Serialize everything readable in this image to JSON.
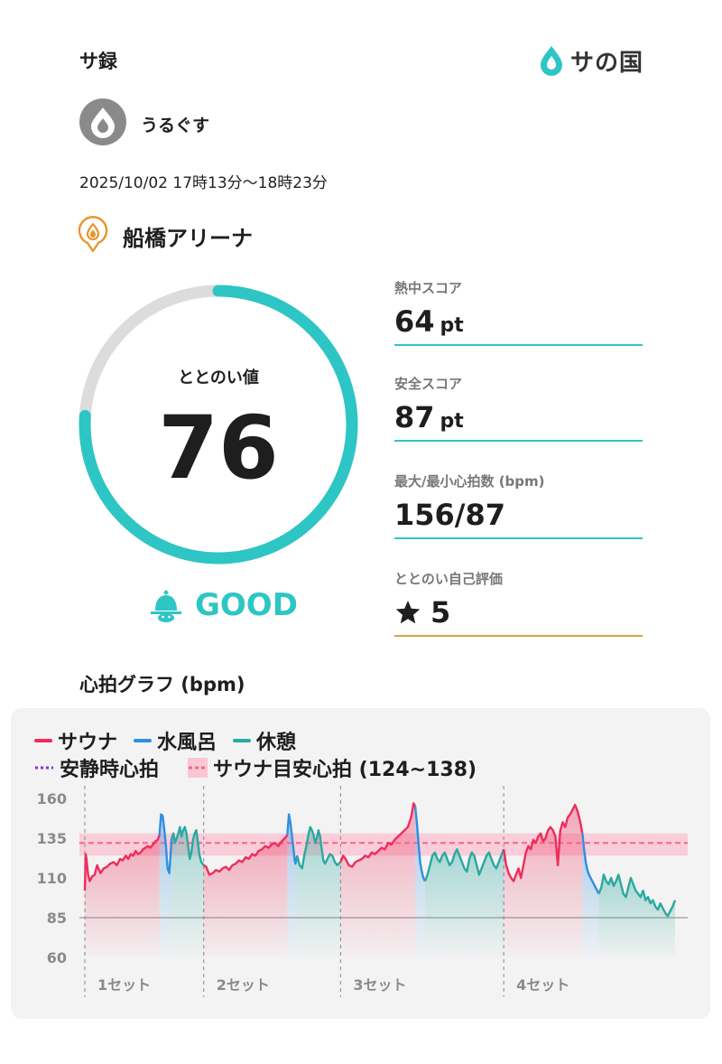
{
  "header": {
    "app_title": "サ録",
    "brand_name": "サの国"
  },
  "user": {
    "name": "うるぐす"
  },
  "session": {
    "time_range": "2025/10/02 17時13分〜18時23分",
    "facility": "船橋アリーナ"
  },
  "totonoi": {
    "label": "ととのい値",
    "value": "76",
    "fraction": 0.76,
    "rating": "GOOD"
  },
  "stats": {
    "heat_label": "熱中スコア",
    "heat_value": "64",
    "heat_unit": "pt",
    "safety_label": "安全スコア",
    "safety_value": "87",
    "safety_unit": "pt",
    "hr_label": "最大/最小心拍数 (bpm)",
    "hr_value": "156/87",
    "self_label": "ととのい自己評価",
    "self_value": "5"
  },
  "graph": {
    "title": "心拍グラフ (bpm)",
    "legend": {
      "sauna": "サウナ",
      "cold": "水風呂",
      "rest": "休憩",
      "resting": "安静時心拍",
      "target": "サウナ目安心拍 (124~138)"
    }
  },
  "colors": {
    "accent": "#2ec5c5",
    "sauna": "#ee2d5b",
    "cold": "#2f8fe0",
    "rest": "#2aa9a0",
    "resting": "#8a2be2",
    "target": "#f2678c",
    "gold": "#d9a441"
  },
  "chart_data": {
    "type": "line",
    "ylabel": "",
    "yticks": [
      60,
      85,
      110,
      135,
      160
    ],
    "ylim": [
      60,
      160
    ],
    "resting_hr": 85,
    "target_band": [
      124,
      138
    ],
    "target_line": 132,
    "set_labels": [
      "1セット",
      "2セット",
      "3セット",
      "4セット"
    ],
    "segments": [
      {
        "kind": "sauna",
        "t": [
          0,
          1,
          2,
          4,
          6,
          9,
          12,
          15,
          19,
          23,
          27,
          31,
          35,
          39,
          43,
          46,
          50,
          53,
          56,
          59,
          62,
          65,
          68,
          71,
          74,
          77,
          80,
          83,
          86,
          89,
          91
        ],
        "y": [
          102,
          125,
          122,
          112,
          108,
          111,
          112,
          118,
          113,
          116,
          117,
          119,
          120,
          118,
          122,
          121,
          124,
          122,
          125,
          124,
          127,
          125,
          126,
          128,
          129,
          130,
          129,
          131,
          133,
          134,
          137
        ]
      },
      {
        "kind": "cold",
        "t": [
          91,
          93,
          95,
          97,
          99,
          100,
          101,
          103,
          104,
          105,
          106
        ],
        "y": [
          137,
          150,
          149,
          140,
          130,
          122,
          116,
          113,
          120,
          128,
          135
        ]
      },
      {
        "kind": "rest",
        "t": [
          106,
          108,
          110,
          112,
          114,
          116,
          118,
          120,
          122,
          124,
          126,
          128,
          130,
          132,
          134,
          136,
          138,
          140,
          142,
          145
        ],
        "y": [
          135,
          138,
          132,
          135,
          138,
          142,
          136,
          140,
          142,
          138,
          130,
          122,
          126,
          134,
          138,
          140,
          132,
          124,
          120,
          118
        ]
      },
      {
        "kind": "sauna",
        "t": [
          145,
          148,
          152,
          156,
          160,
          164,
          168,
          172,
          176,
          180,
          184,
          188,
          192,
          196,
          200,
          204,
          208,
          212,
          216,
          220,
          224,
          228,
          232,
          236,
          240,
          244,
          247
        ],
        "y": [
          118,
          117,
          112,
          113,
          115,
          114,
          116,
          117,
          115,
          118,
          119,
          121,
          120,
          123,
          122,
          125,
          124,
          127,
          128,
          130,
          129,
          131,
          132,
          130,
          133,
          135,
          137
        ]
      },
      {
        "kind": "cold",
        "t": [
          247,
          249,
          251,
          253,
          255,
          256,
          257,
          259
        ],
        "y": [
          137,
          150,
          144,
          135,
          126,
          121,
          119,
          124
        ]
      },
      {
        "kind": "rest",
        "t": [
          259,
          262,
          265,
          268,
          271,
          273,
          275,
          277,
          279,
          281,
          283,
          285,
          287,
          289,
          291,
          293,
          296,
          299,
          302,
          305,
          308,
          312
        ],
        "y": [
          124,
          118,
          116,
          125,
          132,
          138,
          142,
          140,
          137,
          132,
          135,
          140,
          136,
          128,
          121,
          119,
          122,
          125,
          124,
          120,
          118,
          120
        ]
      },
      {
        "kind": "sauna",
        "t": [
          312,
          315,
          318,
          322,
          326,
          330,
          334,
          338,
          342,
          346,
          350,
          354,
          358,
          362,
          366,
          370,
          374,
          378,
          382,
          386,
          390,
          394,
          398,
          401,
          403
        ],
        "y": [
          120,
          124,
          122,
          118,
          117,
          120,
          121,
          122,
          124,
          123,
          126,
          125,
          127,
          129,
          128,
          132,
          131,
          134,
          136,
          138,
          140,
          142,
          148,
          157,
          155
        ]
      },
      {
        "kind": "cold",
        "t": [
          403,
          405,
          407,
          409,
          411,
          413,
          415
        ],
        "y": [
          155,
          145,
          132,
          120,
          114,
          110,
          108
        ]
      },
      {
        "kind": "rest",
        "t": [
          415,
          418,
          421,
          424,
          427,
          430,
          433,
          436,
          439,
          442,
          445,
          448,
          451,
          454,
          457,
          460,
          463,
          466,
          469,
          472,
          475,
          478,
          481,
          484,
          487,
          490,
          493,
          496,
          499,
          502,
          505,
          508,
          511
        ],
        "y": [
          108,
          112,
          118,
          124,
          126,
          122,
          120,
          124,
          126,
          122,
          118,
          120,
          125,
          128,
          124,
          120,
          116,
          114,
          122,
          126,
          124,
          118,
          112,
          116,
          120,
          124,
          126,
          122,
          118,
          116,
          120,
          124,
          128
        ]
      },
      {
        "kind": "sauna",
        "t": [
          511,
          514,
          517,
          520,
          523,
          526,
          529,
          532,
          535,
          538,
          541,
          544,
          547,
          550,
          553,
          556,
          559,
          562,
          565,
          568,
          571,
          574,
          577,
          580,
          583,
          586,
          589,
          592,
          595,
          598,
          601,
          604,
          607
        ],
        "y": [
          128,
          118,
          113,
          110,
          108,
          112,
          116,
          110,
          118,
          126,
          130,
          128,
          134,
          132,
          136,
          138,
          133,
          135,
          140,
          142,
          140,
          136,
          118,
          140,
          145,
          142,
          148,
          150,
          153,
          156,
          152,
          146,
          138
        ]
      },
      {
        "kind": "cold",
        "t": [
          607,
          609,
          611,
          613,
          615,
          617,
          619,
          621,
          623,
          625,
          627
        ],
        "y": [
          138,
          128,
          120,
          115,
          112,
          110,
          108,
          106,
          104,
          102,
          100
        ]
      },
      {
        "kind": "rest",
        "t": [
          627,
          630,
          633,
          636,
          639,
          642,
          645,
          648,
          651,
          654,
          657,
          660,
          663,
          666,
          669,
          672,
          675,
          678,
          681,
          684,
          687,
          690,
          693,
          696,
          699,
          702,
          705,
          708,
          711,
          714,
          717,
          720
        ],
        "y": [
          100,
          104,
          112,
          108,
          106,
          110,
          105,
          108,
          112,
          106,
          100,
          98,
          104,
          110,
          106,
          102,
          100,
          98,
          102,
          96,
          98,
          94,
          96,
          92,
          90,
          94,
          91,
          88,
          86,
          89,
          92,
          96
        ]
      }
    ]
  }
}
